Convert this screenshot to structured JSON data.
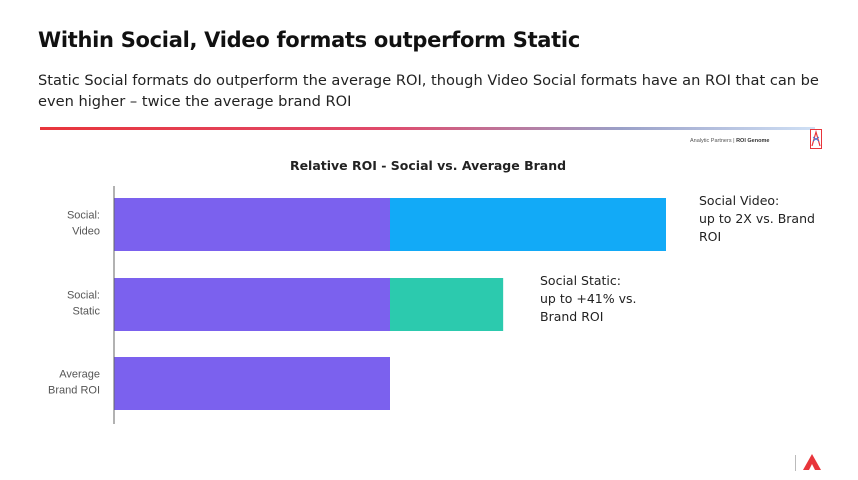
{
  "header": {
    "title": "Within Social, Video formats outperform Static",
    "subtitle": "Static Social formats do outperform the average ROI, though Video Social formats have an ROI that can be even higher – twice the average brand ROI"
  },
  "brand": {
    "company": "Analytic Partners",
    "product": "ROI Genome",
    "separator": "|"
  },
  "colors": {
    "base": "#7B61EE",
    "video": "#12AAF7",
    "static": "#2CCAAE",
    "divider_start": "#e8353b",
    "logo_red": "#e8353b"
  },
  "chart_data": {
    "type": "bar",
    "orientation": "horizontal",
    "stacked": true,
    "title": "Relative ROI - Social vs. Average Brand",
    "categories": [
      [
        "Social:",
        "Video"
      ],
      [
        "Social:",
        "Static"
      ],
      [
        "Average",
        "Brand ROI"
      ]
    ],
    "series": [
      {
        "values": [
          1.0,
          1.0,
          1.0
        ]
      },
      {
        "values": [
          1.0,
          0.41,
          0
        ]
      }
    ],
    "xlim": [
      0,
      2.1
    ],
    "grid": false,
    "annotations": [
      {
        "category_index": 0,
        "lines": [
          "Social Video:",
          "up to 2X vs. Brand",
          "ROI"
        ]
      },
      {
        "category_index": 1,
        "lines": [
          "Social Static:",
          "up to +41% vs.",
          "Brand ROI"
        ]
      }
    ]
  }
}
